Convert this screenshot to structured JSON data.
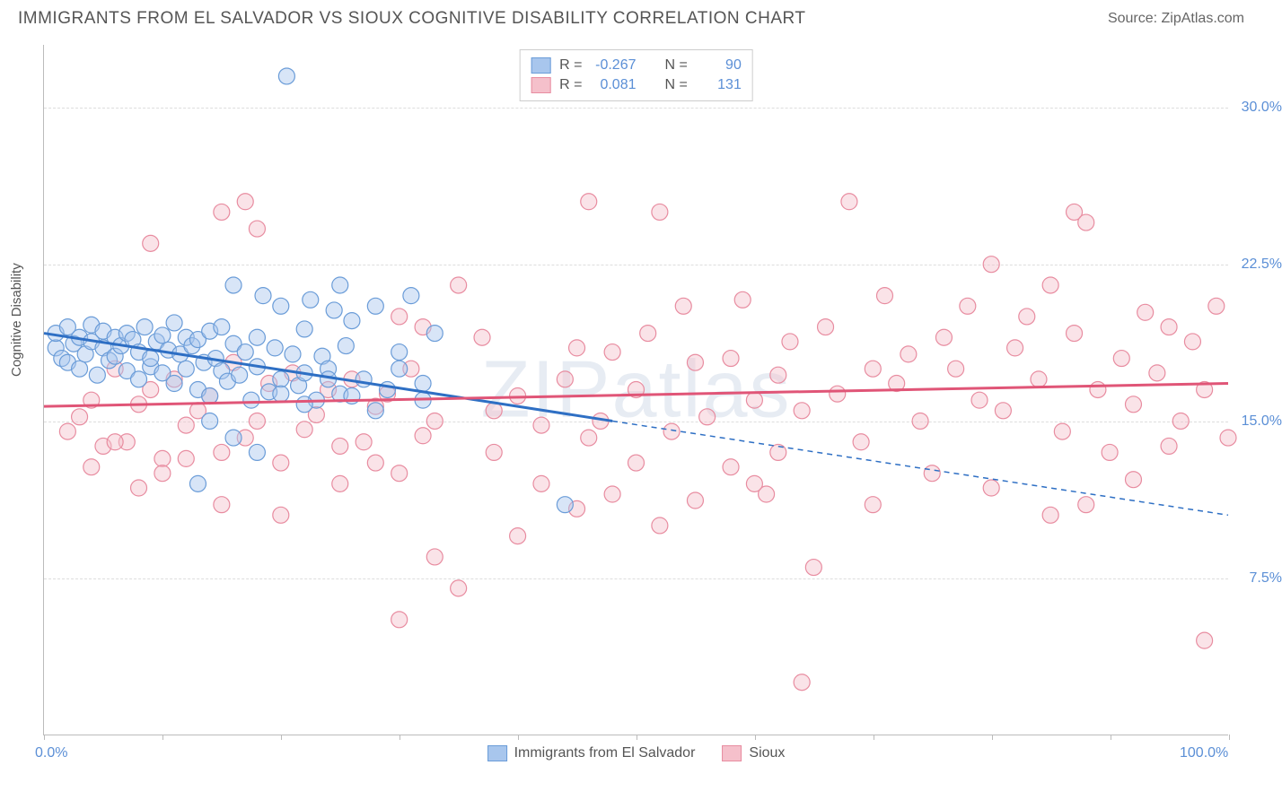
{
  "title": "IMMIGRANTS FROM EL SALVADOR VS SIOUX COGNITIVE DISABILITY CORRELATION CHART",
  "source": "Source: ZipAtlas.com",
  "watermark": "ZIPatlas",
  "ylabel": "Cognitive Disability",
  "chart": {
    "type": "scatter",
    "xlim": [
      0,
      100
    ],
    "ylim": [
      0,
      33
    ],
    "yticks": [
      {
        "value": 7.5,
        "label": "7.5%"
      },
      {
        "value": 15.0,
        "label": "15.0%"
      },
      {
        "value": 22.5,
        "label": "22.5%"
      },
      {
        "value": 30.0,
        "label": "30.0%"
      }
    ],
    "xticks": [
      {
        "value": 0,
        "label": "0.0%"
      },
      {
        "value": 10,
        "label": ""
      },
      {
        "value": 20,
        "label": ""
      },
      {
        "value": 30,
        "label": ""
      },
      {
        "value": 40,
        "label": ""
      },
      {
        "value": 50,
        "label": ""
      },
      {
        "value": 60,
        "label": ""
      },
      {
        "value": 70,
        "label": ""
      },
      {
        "value": 80,
        "label": ""
      },
      {
        "value": 90,
        "label": ""
      },
      {
        "value": 100,
        "label": "100.0%"
      }
    ],
    "background_color": "#ffffff",
    "grid_color": "#dddddd",
    "axis_color": "#bbbbbb",
    "tick_label_color": "#5b8fd6",
    "marker_radius": 9,
    "marker_opacity": 0.45,
    "line_width": 3,
    "series": [
      {
        "name": "Immigrants from El Salvador",
        "color_fill": "#a8c6ed",
        "color_stroke": "#6a9cd8",
        "line_color": "#2e6fc4",
        "R_label": "R =",
        "R": "-0.267",
        "N_label": "N =",
        "N": "90",
        "trend": {
          "x1": 0,
          "y1": 19.2,
          "x2": 48,
          "y2": 15.0,
          "dash_x2": 100,
          "dash_y2": 10.5
        },
        "points": [
          [
            1,
            18.5
          ],
          [
            1,
            19.2
          ],
          [
            1.5,
            18.0
          ],
          [
            2,
            19.5
          ],
          [
            2,
            17.8
          ],
          [
            2.5,
            18.7
          ],
          [
            3,
            19.0
          ],
          [
            3,
            17.5
          ],
          [
            3.5,
            18.2
          ],
          [
            4,
            18.8
          ],
          [
            4,
            19.6
          ],
          [
            4.5,
            17.2
          ],
          [
            5,
            18.5
          ],
          [
            5,
            19.3
          ],
          [
            5.5,
            17.9
          ],
          [
            6,
            18.1
          ],
          [
            6,
            19.0
          ],
          [
            6.5,
            18.6
          ],
          [
            7,
            17.4
          ],
          [
            7,
            19.2
          ],
          [
            7.5,
            18.9
          ],
          [
            8,
            17.0
          ],
          [
            8,
            18.3
          ],
          [
            8.5,
            19.5
          ],
          [
            9,
            17.6
          ],
          [
            9,
            18.0
          ],
          [
            9.5,
            18.8
          ],
          [
            10,
            19.1
          ],
          [
            10,
            17.3
          ],
          [
            10.5,
            18.4
          ],
          [
            11,
            19.7
          ],
          [
            11,
            16.8
          ],
          [
            11.5,
            18.2
          ],
          [
            12,
            17.5
          ],
          [
            12,
            19.0
          ],
          [
            12.5,
            18.6
          ],
          [
            13,
            16.5
          ],
          [
            13,
            18.9
          ],
          [
            13.5,
            17.8
          ],
          [
            14,
            19.3
          ],
          [
            14,
            16.2
          ],
          [
            14.5,
            18.0
          ],
          [
            15,
            17.4
          ],
          [
            15,
            19.5
          ],
          [
            15.5,
            16.9
          ],
          [
            16,
            18.7
          ],
          [
            16,
            21.5
          ],
          [
            16.5,
            17.2
          ],
          [
            17,
            18.3
          ],
          [
            17.5,
            16.0
          ],
          [
            18,
            19.0
          ],
          [
            18,
            17.6
          ],
          [
            18.5,
            21.0
          ],
          [
            19,
            16.4
          ],
          [
            19.5,
            18.5
          ],
          [
            20,
            17.0
          ],
          [
            20,
            20.5
          ],
          [
            20.5,
            31.5
          ],
          [
            21,
            18.2
          ],
          [
            21.5,
            16.7
          ],
          [
            22,
            19.4
          ],
          [
            22,
            17.3
          ],
          [
            22.5,
            20.8
          ],
          [
            23,
            16.0
          ],
          [
            23.5,
            18.1
          ],
          [
            24,
            17.5
          ],
          [
            24.5,
            20.3
          ],
          [
            25,
            16.3
          ],
          [
            25.5,
            18.6
          ],
          [
            26,
            19.8
          ],
          [
            27,
            17.0
          ],
          [
            28,
            20.5
          ],
          [
            29,
            16.5
          ],
          [
            30,
            18.3
          ],
          [
            31,
            21.0
          ],
          [
            32,
            16.8
          ],
          [
            33,
            19.2
          ],
          [
            13,
            12.0
          ],
          [
            14,
            15.0
          ],
          [
            16,
            14.2
          ],
          [
            18,
            13.5
          ],
          [
            20,
            16.3
          ],
          [
            22,
            15.8
          ],
          [
            24,
            17.0
          ],
          [
            26,
            16.2
          ],
          [
            28,
            15.5
          ],
          [
            30,
            17.5
          ],
          [
            32,
            16.0
          ],
          [
            44,
            11.0
          ],
          [
            25,
            21.5
          ]
        ]
      },
      {
        "name": "Sioux",
        "color_fill": "#f5c0cb",
        "color_stroke": "#e88ca0",
        "line_color": "#e05577",
        "R_label": "R =",
        "R": "0.081",
        "N_label": "N =",
        "N": "131",
        "trend": {
          "x1": 0,
          "y1": 15.7,
          "x2": 100,
          "y2": 16.8
        },
        "points": [
          [
            2,
            14.5
          ],
          [
            3,
            15.2
          ],
          [
            4,
            16.0
          ],
          [
            5,
            13.8
          ],
          [
            6,
            17.5
          ],
          [
            7,
            14.0
          ],
          [
            8,
            15.8
          ],
          [
            9,
            16.5
          ],
          [
            10,
            13.2
          ],
          [
            11,
            17.0
          ],
          [
            12,
            14.8
          ],
          [
            13,
            15.5
          ],
          [
            14,
            16.2
          ],
          [
            15,
            13.5
          ],
          [
            16,
            17.8
          ],
          [
            17,
            14.2
          ],
          [
            18,
            15.0
          ],
          [
            19,
            16.8
          ],
          [
            20,
            13.0
          ],
          [
            21,
            17.3
          ],
          [
            22,
            14.6
          ],
          [
            23,
            15.3
          ],
          [
            24,
            16.5
          ],
          [
            25,
            13.8
          ],
          [
            26,
            17.0
          ],
          [
            27,
            14.0
          ],
          [
            28,
            15.7
          ],
          [
            29,
            16.3
          ],
          [
            30,
            12.5
          ],
          [
            31,
            17.5
          ],
          [
            32,
            14.3
          ],
          [
            33,
            15.0
          ],
          [
            9,
            23.5
          ],
          [
            15,
            25.0
          ],
          [
            18,
            24.2
          ],
          [
            17,
            25.5
          ],
          [
            30,
            20.0
          ],
          [
            32,
            19.5
          ],
          [
            35,
            21.5
          ],
          [
            37,
            19.0
          ],
          [
            38,
            15.5
          ],
          [
            40,
            16.2
          ],
          [
            42,
            14.8
          ],
          [
            44,
            17.0
          ],
          [
            45,
            18.5
          ],
          [
            46,
            25.5
          ],
          [
            47,
            15.0
          ],
          [
            48,
            18.3
          ],
          [
            50,
            16.5
          ],
          [
            51,
            19.2
          ],
          [
            52,
            25.0
          ],
          [
            53,
            14.5
          ],
          [
            54,
            20.5
          ],
          [
            55,
            17.8
          ],
          [
            56,
            15.2
          ],
          [
            58,
            18.0
          ],
          [
            59,
            20.8
          ],
          [
            60,
            16.0
          ],
          [
            61,
            11.5
          ],
          [
            62,
            17.2
          ],
          [
            63,
            18.8
          ],
          [
            64,
            15.5
          ],
          [
            65,
            8.0
          ],
          [
            66,
            19.5
          ],
          [
            67,
            16.3
          ],
          [
            68,
            25.5
          ],
          [
            69,
            14.0
          ],
          [
            70,
            17.5
          ],
          [
            71,
            21.0
          ],
          [
            72,
            16.8
          ],
          [
            73,
            18.2
          ],
          [
            74,
            15.0
          ],
          [
            76,
            19.0
          ],
          [
            77,
            17.5
          ],
          [
            78,
            20.5
          ],
          [
            79,
            16.0
          ],
          [
            80,
            22.5
          ],
          [
            81,
            15.5
          ],
          [
            82,
            18.5
          ],
          [
            83,
            20.0
          ],
          [
            84,
            17.0
          ],
          [
            85,
            21.5
          ],
          [
            86,
            14.5
          ],
          [
            87,
            19.2
          ],
          [
            87,
            25.0
          ],
          [
            88,
            24.5
          ],
          [
            89,
            16.5
          ],
          [
            90,
            13.5
          ],
          [
            91,
            18.0
          ],
          [
            92,
            15.8
          ],
          [
            93,
            20.2
          ],
          [
            94,
            17.3
          ],
          [
            95,
            19.5
          ],
          [
            96,
            15.0
          ],
          [
            97,
            18.8
          ],
          [
            98,
            16.5
          ],
          [
            99,
            20.5
          ],
          [
            100,
            14.2
          ],
          [
            33,
            8.5
          ],
          [
            35,
            7.0
          ],
          [
            40,
            9.5
          ],
          [
            45,
            10.8
          ],
          [
            48,
            11.5
          ],
          [
            52,
            10.0
          ],
          [
            55,
            11.2
          ],
          [
            60,
            12.0
          ],
          [
            64,
            2.5
          ],
          [
            70,
            11.0
          ],
          [
            75,
            12.5
          ],
          [
            80,
            11.8
          ],
          [
            85,
            10.5
          ],
          [
            88,
            11.0
          ],
          [
            92,
            12.2
          ],
          [
            95,
            13.8
          ],
          [
            98,
            4.5
          ],
          [
            25,
            12.0
          ],
          [
            28,
            13.0
          ],
          [
            30,
            5.5
          ],
          [
            15,
            11.0
          ],
          [
            20,
            10.5
          ],
          [
            10,
            12.5
          ],
          [
            12,
            13.2
          ],
          [
            8,
            11.8
          ],
          [
            6,
            14.0
          ],
          [
            4,
            12.8
          ],
          [
            38,
            13.5
          ],
          [
            42,
            12.0
          ],
          [
            46,
            14.2
          ],
          [
            50,
            13.0
          ],
          [
            58,
            12.8
          ],
          [
            62,
            13.5
          ]
        ]
      }
    ]
  },
  "legend_bottom": [
    {
      "label": "Immigrants from El Salvador",
      "fill": "#a8c6ed",
      "stroke": "#6a9cd8"
    },
    {
      "label": "Sioux",
      "fill": "#f5c0cb",
      "stroke": "#e88ca0"
    }
  ]
}
